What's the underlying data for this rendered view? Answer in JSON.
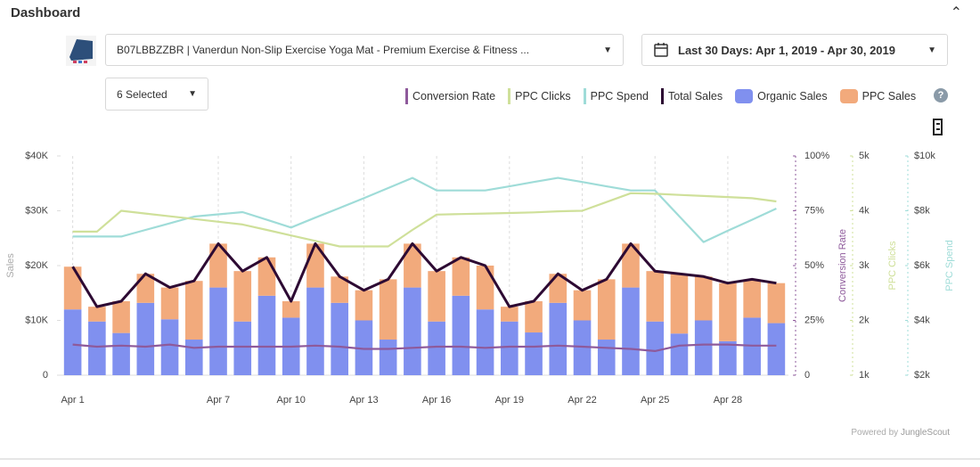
{
  "header": {
    "title": "Dashboard"
  },
  "controls": {
    "product": "B07LBBZZBR | Vanerdun Non-Slip Exercise Yoga Mat - Premium Exercise & Fitness ...",
    "date_range": "Last 30 Days: Apr 1, 2019 - Apr 30, 2019",
    "series_select": "6 Selected"
  },
  "footer": {
    "powered_by": "Powered by",
    "brand": "JungleScout"
  },
  "chart_data": {
    "type": "bar-line",
    "categories": [
      "Apr 1",
      null,
      null,
      null,
      null,
      null,
      "Apr 7",
      null,
      null,
      "Apr 10",
      null,
      null,
      "Apr 13",
      null,
      null,
      "Apr 16",
      null,
      null,
      "Apr 19",
      null,
      null,
      "Apr 22",
      null,
      null,
      "Apr 25",
      null,
      null,
      "Apr 28",
      null,
      null
    ],
    "ylabel": "Sales",
    "y2label": "Conversion Rate",
    "y3label": "PPC Clicks",
    "y4label": "PPC Spend",
    "ylim": [
      0,
      40000
    ],
    "yticks": [
      0,
      {
        "value": 10000,
        "label": "$10K"
      },
      {
        "value": 20000,
        "label": "$20K"
      },
      {
        "value": 30000,
        "label": "$30K"
      },
      {
        "value": 40000,
        "label": "$40K"
      }
    ],
    "y2lim": [
      0,
      100
    ],
    "y2ticks": [
      0,
      {
        "value": 25,
        "label": "25%"
      },
      {
        "value": 50,
        "label": "50%"
      },
      {
        "value": 75,
        "label": "75%"
      },
      {
        "value": 100,
        "label": "100%"
      }
    ],
    "y3lim": [
      1000,
      5000
    ],
    "y3ticks": [
      {
        "value": 1000,
        "label": "1k"
      },
      {
        "value": 2000,
        "label": "2k"
      },
      {
        "value": 3000,
        "label": "3k"
      },
      {
        "value": 4000,
        "label": "4k"
      },
      {
        "value": 5000,
        "label": "5k"
      }
    ],
    "y4lim": [
      2000,
      10000
    ],
    "y4ticks": [
      {
        "value": 2000,
        "label": "$2k"
      },
      {
        "value": 4000,
        "label": "$4k"
      },
      {
        "value": 6000,
        "label": "$6k"
      },
      {
        "value": 8000,
        "label": "$8k"
      },
      {
        "value": 10000,
        "label": "$10k"
      }
    ],
    "grid": "x",
    "series": [
      {
        "name": "Conversion Rate",
        "type": "line",
        "axis": "y2",
        "color": "#8e5a9b",
        "values": [
          14,
          13,
          13.5,
          13,
          14,
          12.5,
          13,
          13,
          13,
          13,
          13.5,
          13,
          12,
          12,
          12.5,
          13,
          13,
          12.5,
          13,
          13,
          13.5,
          13,
          12.5,
          12,
          11,
          13.5,
          14,
          14,
          13.5,
          13.5
        ]
      },
      {
        "name": "PPC Clicks",
        "type": "line",
        "axis": "y3",
        "color": "#cfe09a",
        "values": [
          3620,
          3620,
          4000,
          3950,
          3900,
          3850,
          3800,
          3750,
          3650,
          3550,
          3450,
          3350,
          3350,
          3350,
          3650,
          3930,
          3940,
          3950,
          3960,
          3970,
          3990,
          4000,
          4160,
          4320,
          4310,
          4290,
          4270,
          4250,
          4230,
          4170
        ]
      },
      {
        "name": "PPC Spend",
        "type": "line",
        "axis": "y4",
        "color": "#9fdcd8",
        "values": [
          7060,
          7060,
          7060,
          7300,
          7540,
          7790,
          7870,
          7950,
          7670,
          7390,
          7750,
          8100,
          8460,
          8830,
          9200,
          8740,
          8740,
          8740,
          8890,
          9050,
          9200,
          9050,
          8890,
          8740,
          8740,
          7800,
          6860,
          7270,
          7670,
          8080
        ]
      },
      {
        "name": "Total Sales",
        "type": "line",
        "axis": "y",
        "color": "#2d0a33",
        "values": [
          19800,
          12500,
          13500,
          18500,
          16000,
          17200,
          24000,
          19000,
          21500,
          13500,
          24000,
          18000,
          15500,
          17500,
          24000,
          19000,
          21500,
          20000,
          12500,
          13500,
          18500,
          15500,
          17500,
          24000,
          19000,
          18500,
          18000,
          16800,
          17500,
          16800
        ]
      },
      {
        "name": "Organic Sales",
        "type": "bar",
        "axis": "y",
        "color": "#8090ef",
        "values": [
          12000,
          9800,
          7700,
          13200,
          10200,
          6500,
          16000,
          9800,
          14500,
          10500,
          16000,
          13200,
          10000,
          6500,
          16000,
          9800,
          14500,
          12000,
          9800,
          7800,
          13200,
          10000,
          6500,
          16000,
          9800,
          7600,
          10000,
          6200,
          10500,
          9500
        ]
      },
      {
        "name": "PPC Sales",
        "type": "bar",
        "axis": "y",
        "color": "#f2aa7c",
        "values": [
          7800,
          2700,
          5800,
          5300,
          5800,
          10700,
          8000,
          9200,
          7000,
          3000,
          8000,
          4800,
          5500,
          11000,
          8000,
          9200,
          7000,
          8000,
          2700,
          5700,
          5300,
          5500,
          11000,
          8000,
          9200,
          10900,
          8000,
          10600,
          7000,
          7300
        ]
      }
    ]
  }
}
